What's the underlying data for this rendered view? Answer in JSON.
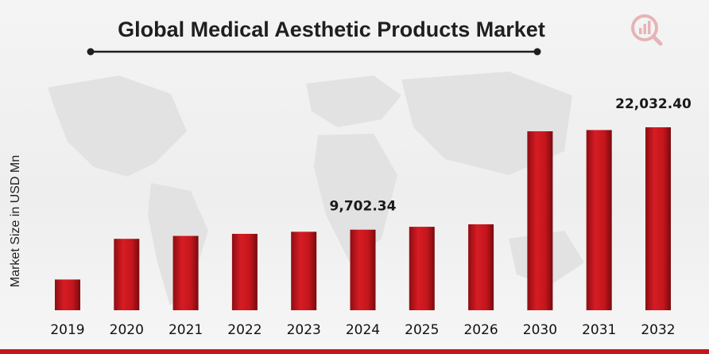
{
  "chart_data": {
    "type": "bar",
    "title": "Global Medical Aesthetic Products  Market",
    "ylabel": "Market Size in USD Mn",
    "xlabel": "",
    "categories": [
      "2019",
      "2020",
      "2021",
      "2022",
      "2023",
      "2024",
      "2025",
      "2026",
      "2030",
      "2031",
      "2032"
    ],
    "values": [
      3700,
      8600,
      8950,
      9200,
      9450,
      9702.34,
      10050,
      10350,
      21550,
      21700,
      22032.4
    ],
    "data_labels": [
      {
        "category": "2024",
        "text": "9,702.34"
      },
      {
        "category": "2032",
        "text": "22,032.40"
      }
    ],
    "grid": false,
    "legend": "none",
    "bar_color": "#c4161c"
  },
  "colors": {
    "accent": "#c4161c",
    "title_underline": "#1f1f1f"
  },
  "logo": {
    "icon": "brand-logo-icon"
  }
}
